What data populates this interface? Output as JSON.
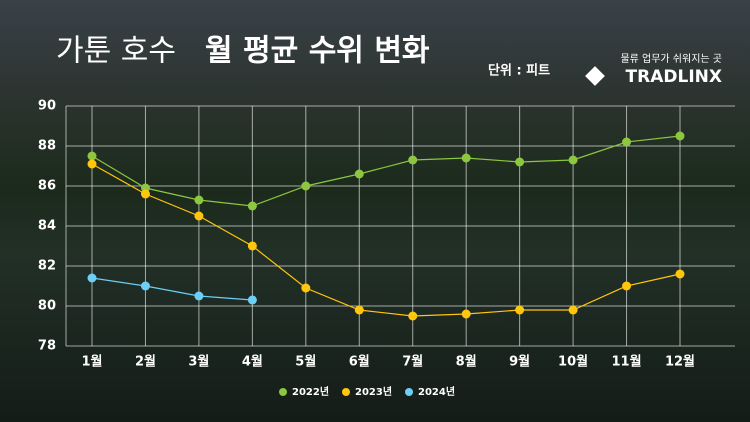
{
  "chart_data": {
    "type": "line",
    "title_light": "가툰 호수",
    "title_bold": "월 평균 수위 변화",
    "unit_label": "단위 : 피트",
    "brand_tagline": "물류 업무가 쉬워지는 곳",
    "brand_name": "TRADLINX",
    "categories": [
      "1월",
      "2월",
      "3월",
      "4월",
      "5월",
      "6월",
      "7월",
      "8월",
      "9월",
      "10월",
      "11월",
      "12월"
    ],
    "series": [
      {
        "name": "2022년",
        "color": "#8dc63f",
        "values": [
          87.5,
          85.9,
          85.3,
          85.0,
          86.0,
          86.6,
          87.3,
          87.4,
          87.2,
          87.3,
          88.2,
          88.5
        ]
      },
      {
        "name": "2023년",
        "color": "#ffc60b",
        "values": [
          87.1,
          85.6,
          84.5,
          83.0,
          80.9,
          79.8,
          79.5,
          79.6,
          79.8,
          79.8,
          81.0,
          81.6
        ]
      },
      {
        "name": "2024년",
        "color": "#6dcff6",
        "values": [
          81.4,
          81.0,
          80.5,
          80.3,
          null,
          null,
          null,
          null,
          null,
          null,
          null,
          null
        ]
      }
    ],
    "ylim": [
      78,
      90
    ],
    "yticks": [
      78,
      80,
      82,
      84,
      86,
      88,
      90
    ],
    "grid": true,
    "legend": "bottom"
  }
}
